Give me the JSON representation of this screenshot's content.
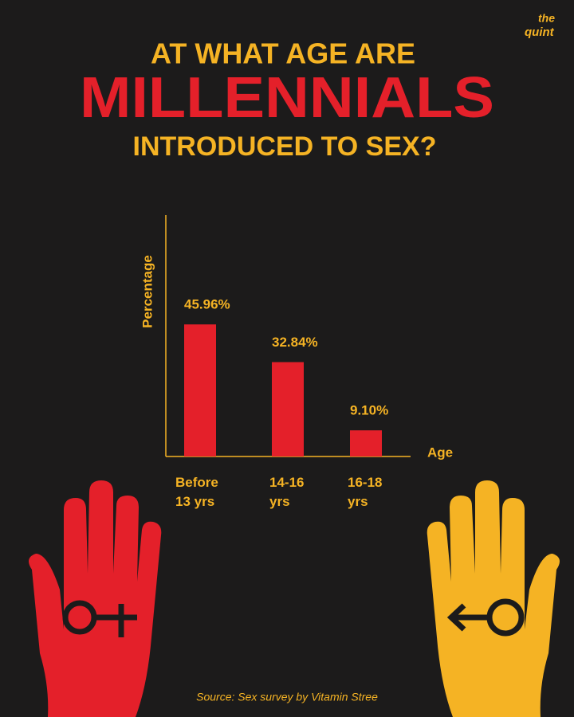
{
  "chart_data": {
    "type": "bar",
    "title": [
      "AT WHAT AGE ARE",
      "MILLENNIALS",
      "INTRODUCED TO SEX?"
    ],
    "logo": [
      "the",
      "quint"
    ],
    "y_label": "Percentage",
    "x_label": "Age",
    "categories": [
      "Before 13 yrs",
      "14-16 yrs",
      "16-18 yrs"
    ],
    "values": [
      45.96,
      32.84,
      9.1
    ],
    "value_labels": [
      "45.96%",
      "32.84%",
      "9.10%"
    ],
    "color": "#e4202a",
    "ylim": [
      0,
      84
    ],
    "source": "Source: Sex survey by Vitamin Stree"
  }
}
